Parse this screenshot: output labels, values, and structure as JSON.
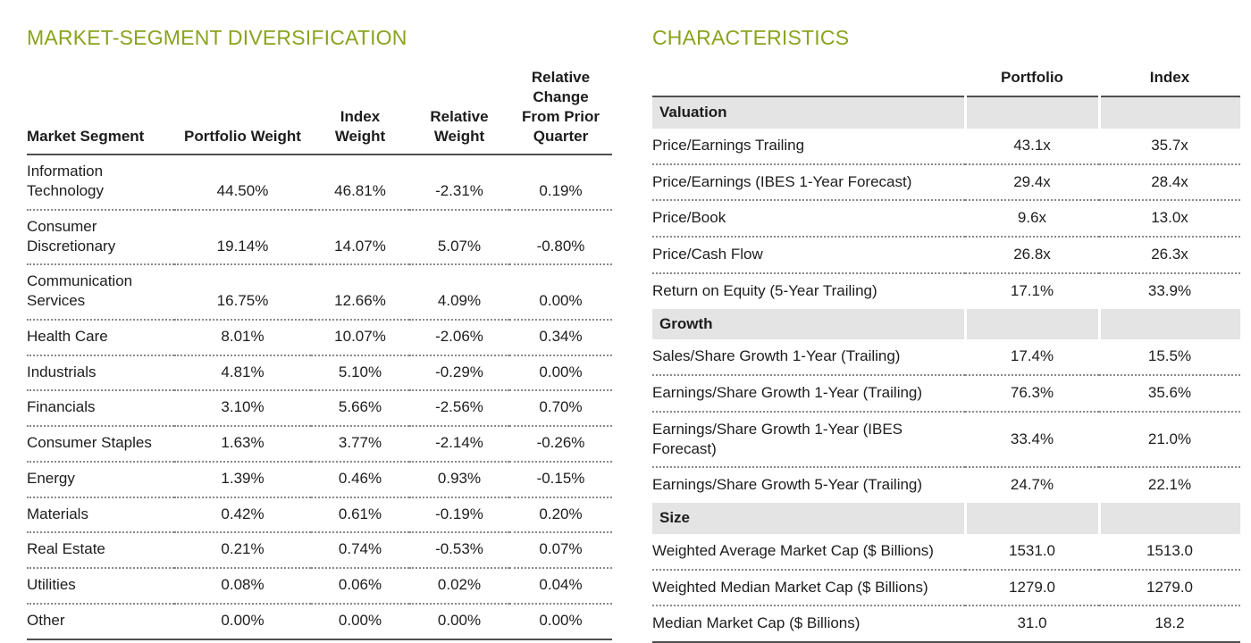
{
  "colors": {
    "accent_green": "#89A41D",
    "section_band_gray": "#E4E4E4",
    "rule_solid": "#4F4F4F",
    "rule_dotted": "#8A8A8A",
    "text": "#1D1D1D"
  },
  "market_segment_diversification": {
    "title": "MARKET-SEGMENT DIVERSIFICATION",
    "columns": [
      "Market Segment",
      "Portfolio Weight",
      "Index Weight",
      "Relative Weight",
      "Relative Change From Prior Quarter"
    ],
    "rows": [
      {
        "segment": "Information Technology",
        "values": [
          "44.50%",
          "46.81%",
          "-2.31%",
          "0.19%"
        ]
      },
      {
        "segment": "Consumer Discretionary",
        "values": [
          "19.14%",
          "14.07%",
          "5.07%",
          "-0.80%"
        ]
      },
      {
        "segment": "Communication Services",
        "values": [
          "16.75%",
          "12.66%",
          "4.09%",
          "0.00%"
        ]
      },
      {
        "segment": "Health Care",
        "values": [
          "8.01%",
          "10.07%",
          "-2.06%",
          "0.34%"
        ]
      },
      {
        "segment": "Industrials",
        "values": [
          "4.81%",
          "5.10%",
          "-0.29%",
          "0.00%"
        ]
      },
      {
        "segment": "Financials",
        "values": [
          "3.10%",
          "5.66%",
          "-2.56%",
          "0.70%"
        ]
      },
      {
        "segment": "Consumer Staples",
        "values": [
          "1.63%",
          "3.77%",
          "-2.14%",
          "-0.26%"
        ]
      },
      {
        "segment": "Energy",
        "values": [
          "1.39%",
          "0.46%",
          "0.93%",
          "-0.15%"
        ]
      },
      {
        "segment": "Materials",
        "values": [
          "0.42%",
          "0.61%",
          "-0.19%",
          "0.20%"
        ]
      },
      {
        "segment": "Real Estate",
        "values": [
          "0.21%",
          "0.74%",
          "-0.53%",
          "0.07%"
        ]
      },
      {
        "segment": "Utilities",
        "values": [
          "0.08%",
          "0.06%",
          "0.02%",
          "0.04%"
        ]
      },
      {
        "segment": "Other",
        "values": [
          "0.00%",
          "0.00%",
          "0.00%",
          "0.00%"
        ]
      }
    ]
  },
  "characteristics": {
    "title": "CHARACTERISTICS",
    "columns": [
      "",
      "Portfolio",
      "Index"
    ],
    "sections": [
      {
        "name": "Valuation",
        "rows": [
          {
            "label": "Price/Earnings Trailing",
            "portfolio": "43.1x",
            "index": "35.7x"
          },
          {
            "label": "Price/Earnings (IBES 1-Year Forecast)",
            "portfolio": "29.4x",
            "index": "28.4x"
          },
          {
            "label": "Price/Book",
            "portfolio": "9.6x",
            "index": "13.0x"
          },
          {
            "label": "Price/Cash Flow",
            "portfolio": "26.8x",
            "index": "26.3x"
          },
          {
            "label": "Return on Equity (5-Year Trailing)",
            "portfolio": "17.1%",
            "index": "33.9%"
          }
        ]
      },
      {
        "name": "Growth",
        "rows": [
          {
            "label": "Sales/Share Growth 1-Year (Trailing)",
            "portfolio": "17.4%",
            "index": "15.5%"
          },
          {
            "label": "Earnings/Share Growth 1-Year (Trailing)",
            "portfolio": "76.3%",
            "index": "35.6%"
          },
          {
            "label": "Earnings/Share Growth 1-Year (IBES Forecast)",
            "portfolio": "33.4%",
            "index": "21.0%"
          },
          {
            "label": "Earnings/Share Growth 5-Year (Trailing)",
            "portfolio": "24.7%",
            "index": "22.1%"
          }
        ]
      },
      {
        "name": "Size",
        "rows": [
          {
            "label": "Weighted Average Market Cap ($ Billions)",
            "portfolio": "1531.0",
            "index": "1513.0"
          },
          {
            "label": "Weighted Median Market Cap ($ Billions)",
            "portfolio": "1279.0",
            "index": "1279.0"
          },
          {
            "label": "Median Market Cap ($ Billions)",
            "portfolio": "31.0",
            "index": "18.2"
          }
        ]
      }
    ]
  }
}
